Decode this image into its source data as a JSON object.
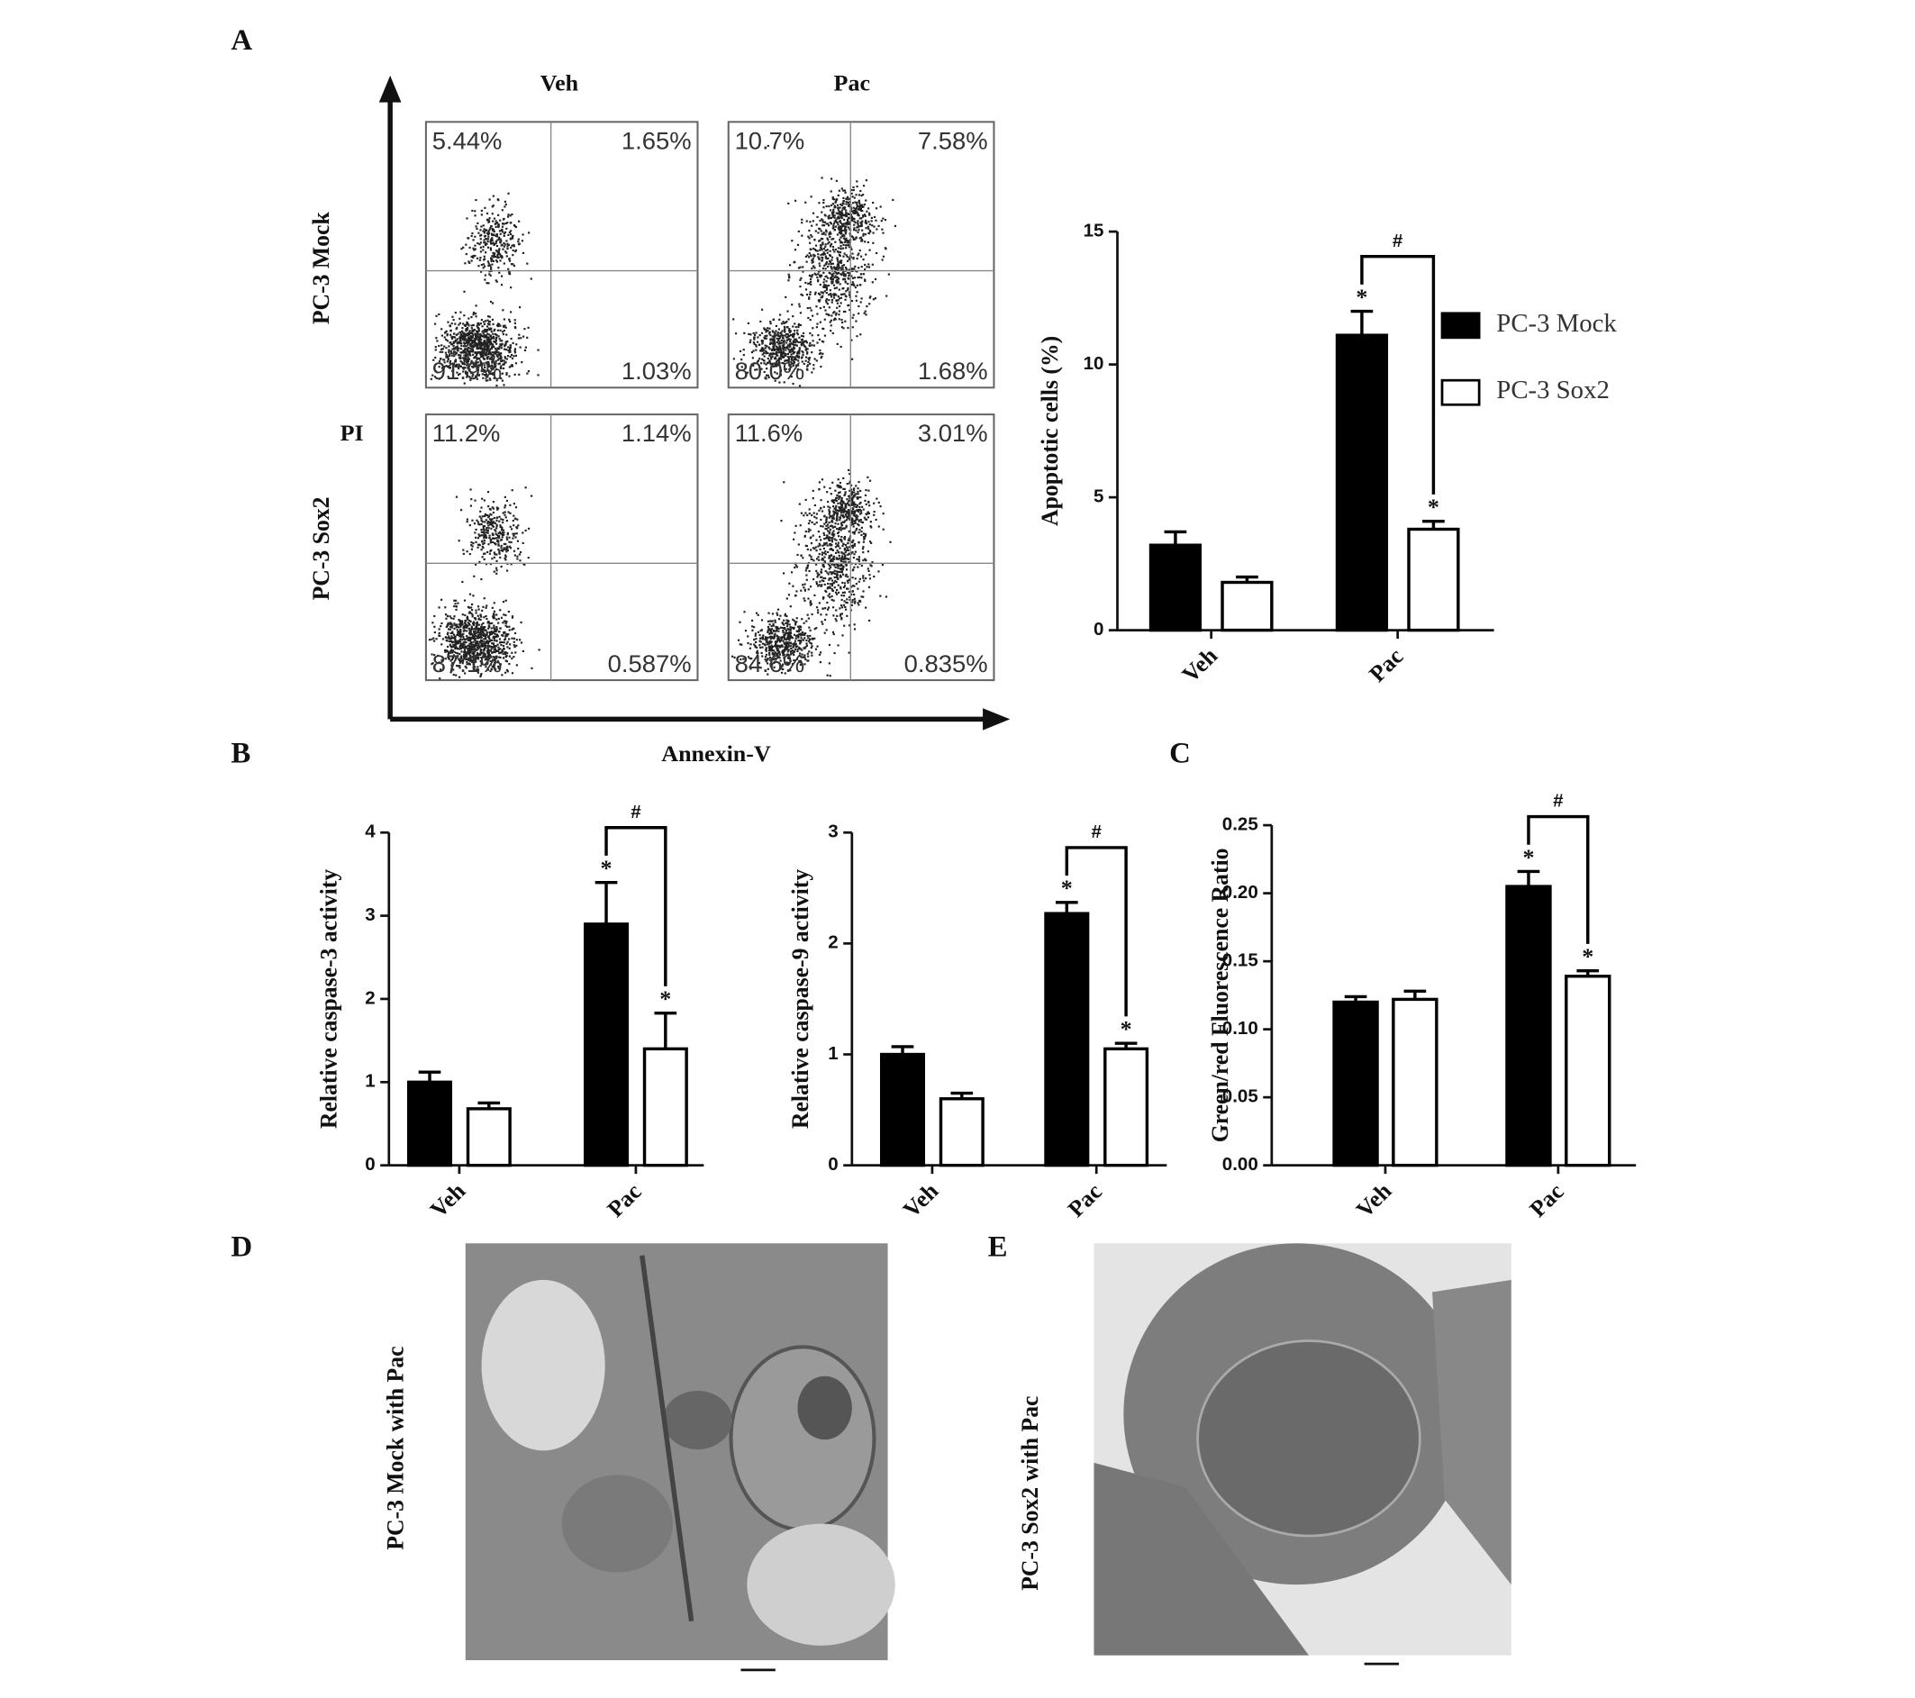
{
  "panels": {
    "a": "A",
    "b": "B",
    "c": "C",
    "d": "D",
    "e": "E"
  },
  "flow": {
    "columns": [
      "Veh",
      "Pac"
    ],
    "rows": [
      "PC-3 Mock",
      "PC-3 Sox2"
    ],
    "y_label": "PI",
    "x_label": "Annexin-V",
    "quadrants": [
      [
        [
          "5.44%",
          "1.65%",
          "91.9%",
          "1.03%"
        ],
        [
          "10.7%",
          "7.58%",
          "80.0%",
          "1.68%"
        ]
      ],
      [
        [
          "11.2%",
          "1.14%",
          "87.1%",
          "0.587%"
        ],
        [
          "11.6%",
          "3.01%",
          "84.6%",
          "0.835%"
        ]
      ]
    ]
  },
  "chart_data": [
    {
      "type": "bar",
      "ylabel": "Apoptotic cells (%)",
      "categories": [
        "Veh",
        "Pac"
      ],
      "ylim": [
        0,
        15
      ],
      "yticks": [
        0,
        5,
        10,
        15
      ],
      "legend": true,
      "series": [
        {
          "name": "PC-3 Mock",
          "color": "#000000",
          "values": [
            3.2,
            11.1
          ],
          "errors": [
            0.5,
            0.9
          ]
        },
        {
          "name": "PC-3 Sox2",
          "color": "#ffffff",
          "values": [
            1.8,
            3.8
          ],
          "errors": [
            0.2,
            0.3
          ]
        }
      ],
      "significance": {
        "star": "*",
        "bracket": "#"
      }
    },
    {
      "type": "bar",
      "ylabel": "Relative caspase-3 activity",
      "categories": [
        "Veh",
        "Pac"
      ],
      "ylim": [
        0,
        4
      ],
      "yticks": [
        0,
        1,
        2,
        3,
        4
      ],
      "legend": false,
      "series": [
        {
          "color": "#000000",
          "values": [
            1.0,
            2.9
          ],
          "errors": [
            0.12,
            0.5
          ]
        },
        {
          "color": "#ffffff",
          "values": [
            0.68,
            1.4
          ],
          "errors": [
            0.07,
            0.43
          ]
        }
      ],
      "significance": {
        "star": "*",
        "bracket": "#"
      }
    },
    {
      "type": "bar",
      "ylabel": "Relative caspase-9 activity",
      "categories": [
        "Veh",
        "Pac"
      ],
      "ylim": [
        0,
        3
      ],
      "yticks": [
        0,
        1,
        2,
        3
      ],
      "legend": false,
      "series": [
        {
          "color": "#000000",
          "values": [
            1.0,
            2.27
          ],
          "errors": [
            0.07,
            0.1
          ]
        },
        {
          "color": "#ffffff",
          "values": [
            0.6,
            1.05
          ],
          "errors": [
            0.05,
            0.05
          ]
        }
      ],
      "significance": {
        "star": "*",
        "bracket": "#"
      }
    },
    {
      "type": "bar",
      "ylabel": "Green/red Fluorescence Ratio",
      "categories": [
        "Veh",
        "Pac"
      ],
      "ylim": [
        0,
        0.25
      ],
      "yticks": [
        {
          "value": 0,
          "label": "0.00"
        },
        0.05,
        {
          "value": 0.1,
          "label": "0.10"
        },
        0.15,
        {
          "value": 0.2,
          "label": "0.20"
        },
        0.25
      ],
      "legend": false,
      "series": [
        {
          "color": "#000000",
          "values": [
            0.12,
            0.205
          ],
          "errors": [
            0.004,
            0.011
          ]
        },
        {
          "color": "#ffffff",
          "values": [
            0.122,
            0.139
          ],
          "errors": [
            0.006,
            0.004
          ]
        }
      ],
      "significance": {
        "star": "*",
        "bracket": "#"
      }
    }
  ],
  "micrographs": [
    {
      "label": "PC-3 Mock with Pac"
    },
    {
      "label": "PC-3 Sox2 with Pac"
    }
  ]
}
